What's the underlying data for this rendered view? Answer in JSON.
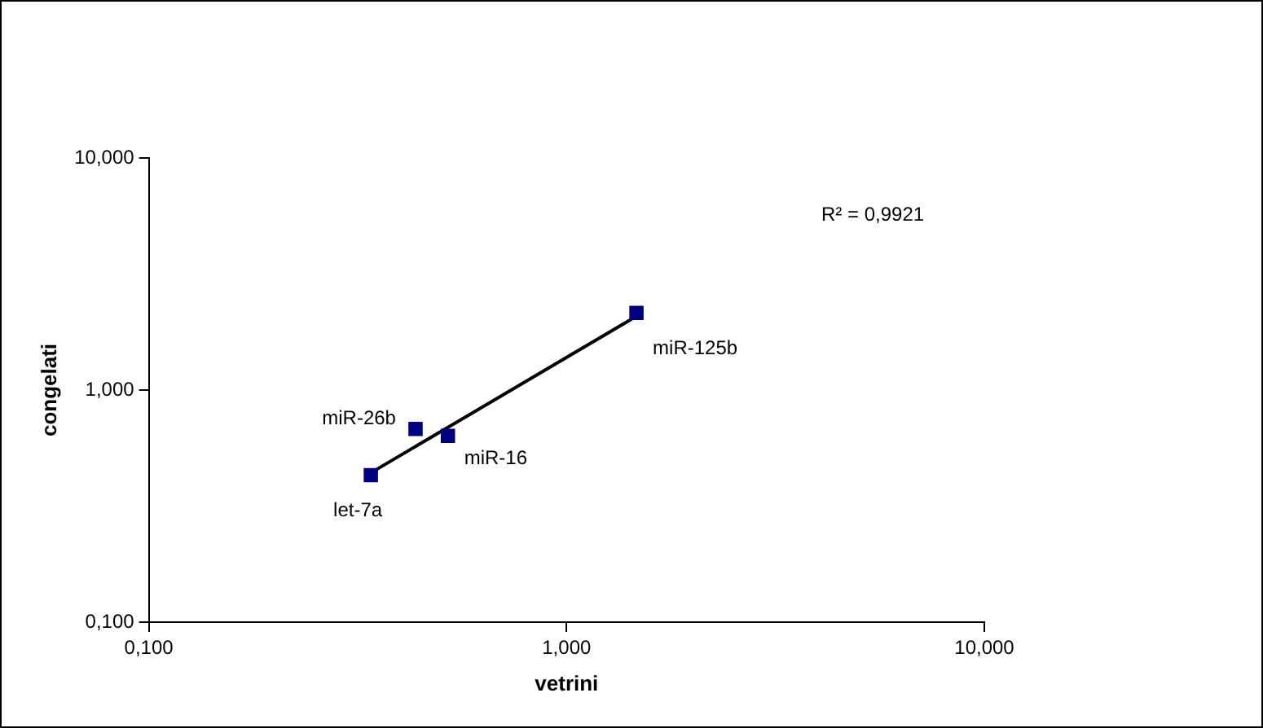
{
  "chart_data": {
    "type": "scatter",
    "xlabel": "vetrini",
    "ylabel": "congelati",
    "log": "xy",
    "grid": false,
    "legend": false,
    "marker": "square",
    "xlim": [
      0.1,
      10
    ],
    "ylim": [
      0.1,
      10
    ],
    "xticks": [
      {
        "value": 0.1,
        "label": "0,100"
      },
      {
        "value": 1,
        "label": "1,000"
      },
      {
        "value": 10,
        "label": "10,000"
      }
    ],
    "yticks": [
      {
        "value": 0.1,
        "label": "0,100"
      },
      {
        "value": 1,
        "label": "1,000"
      },
      {
        "value": 10,
        "label": "10,000"
      }
    ],
    "series": [
      {
        "type": "scatter",
        "color": "#000080",
        "x": [
          0.34,
          0.435,
          0.52,
          1.47
        ],
        "values": [
          0.43,
          0.68,
          0.635,
          2.15
        ]
      },
      {
        "type": "line",
        "color": "#000000",
        "marker": "none",
        "line_style": "solid",
        "x": [
          0.34,
          1.47
        ],
        "values": [
          0.44,
          2.08
        ]
      }
    ],
    "annotations": [
      {
        "text": "let-7a",
        "x": 0.34,
        "y": 0.43
      },
      {
        "text": "miR-26b",
        "x": 0.435,
        "y": 0.68
      },
      {
        "text": "miR-16",
        "x": 0.52,
        "y": 0.635
      },
      {
        "text": "miR-125b",
        "x": 1.47,
        "y": 2.15
      },
      "R² = 0,9921"
    ]
  }
}
